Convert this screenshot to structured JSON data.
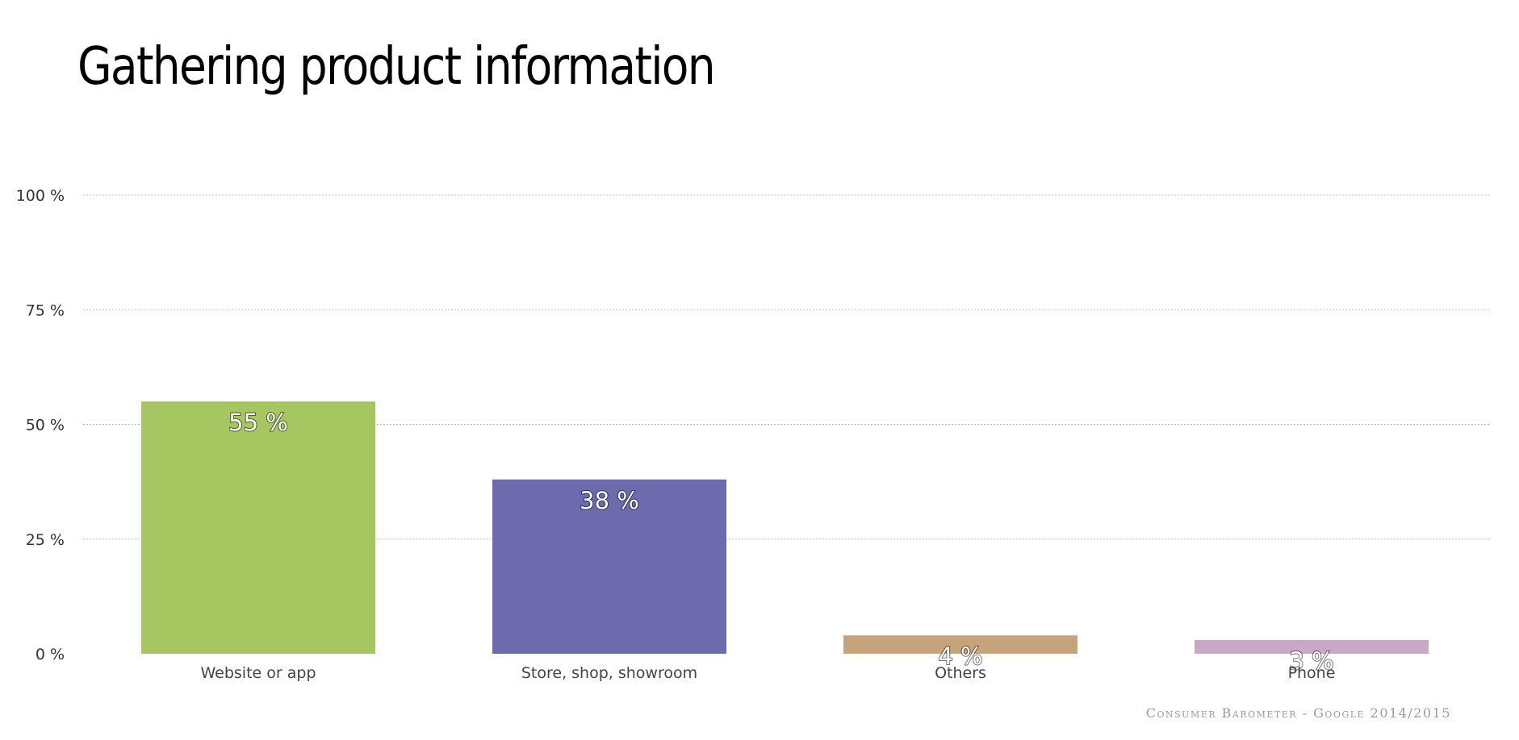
{
  "title": "Gathering product information",
  "source": "Consumer Barometer - Google 2014/2015",
  "chart_data": {
    "type": "bar",
    "categories": [
      "Website or app",
      "Store, shop, showroom",
      "Others",
      "Phone"
    ],
    "values": [
      55,
      38,
      4,
      3
    ],
    "value_labels": [
      "55 %",
      "38 %",
      "4 %",
      "3 %"
    ],
    "colors": [
      "#a6c661",
      "#6d6aad",
      "#c6a47b",
      "#c8a8c4"
    ],
    "ylim": [
      0,
      100
    ],
    "yticks": [
      0,
      25,
      50,
      75,
      100
    ],
    "ytick_labels": [
      "0 %",
      "25 %",
      "50 %",
      "75 %",
      "100 %"
    ],
    "grid": true
  }
}
